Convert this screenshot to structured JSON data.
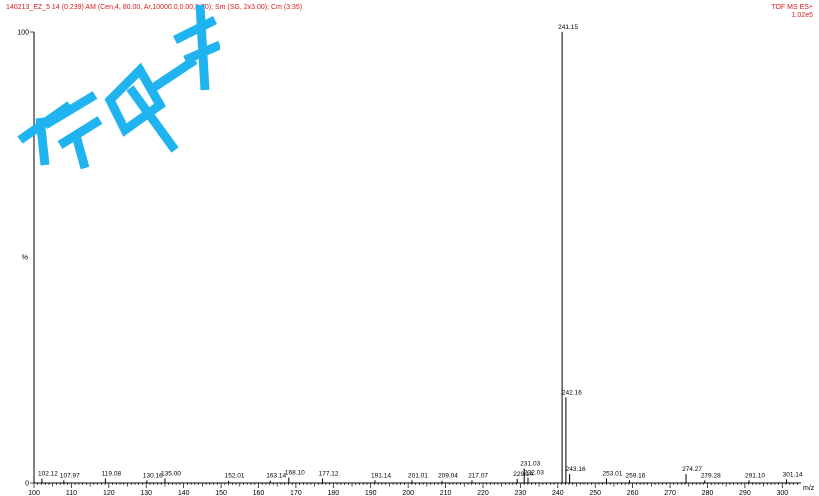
{
  "header": {
    "left": "140213_EZ_5 14 (0.239) AM (Cen,4, 80.00, Ar,10000.0,0.00,0.70); Sm (SG, 2x3.00); Cm (3:35)",
    "right_line1": "TOF MS ES+",
    "right_line2": "1.02e5"
  },
  "chart_data": {
    "type": "bar",
    "title": "",
    "xlabel": "m/z",
    "ylabel": "%",
    "xlim": [
      100,
      305
    ],
    "ylim": [
      0,
      100
    ],
    "x_ticks": [
      100,
      110,
      120,
      130,
      140,
      150,
      160,
      170,
      180,
      190,
      200,
      210,
      220,
      230,
      240,
      250,
      260,
      270,
      280,
      290,
      300
    ],
    "y_ticks": [
      0,
      100
    ],
    "peaks": [
      {
        "mz": 102.12,
        "label": "102.12",
        "intensity": 1.0
      },
      {
        "mz": 107.97,
        "label": "107.97",
        "intensity": 0.6
      },
      {
        "mz": 119.08,
        "label": "119.08",
        "intensity": 1.0
      },
      {
        "mz": 130.16,
        "label": "130.16",
        "intensity": 0.6
      },
      {
        "mz": 135.0,
        "label": "135.00",
        "intensity": 1.0
      },
      {
        "mz": 152.01,
        "label": "152.01",
        "intensity": 0.5
      },
      {
        "mz": 163.14,
        "label": "163.14",
        "intensity": 0.5
      },
      {
        "mz": 168.1,
        "label": "168.10",
        "intensity": 1.2
      },
      {
        "mz": 177.12,
        "label": "177.12",
        "intensity": 1.0
      },
      {
        "mz": 191.14,
        "label": "191.14",
        "intensity": 0.6
      },
      {
        "mz": 201.01,
        "label": "201.01",
        "intensity": 0.6
      },
      {
        "mz": 209.04,
        "label": "209.04",
        "intensity": 0.5
      },
      {
        "mz": 217.07,
        "label": "217.07",
        "intensity": 0.6
      },
      {
        "mz": 229.14,
        "label": "229.14",
        "intensity": 0.9
      },
      {
        "mz": 231.03,
        "label": "231.03",
        "intensity": 3.2
      },
      {
        "mz": 232.03,
        "label": "232.03",
        "intensity": 1.2
      },
      {
        "mz": 241.15,
        "label": "241.15",
        "intensity": 100
      },
      {
        "mz": 242.16,
        "label": "242.16",
        "intensity": 19
      },
      {
        "mz": 243.16,
        "label": "243.16",
        "intensity": 2.0
      },
      {
        "mz": 253.01,
        "label": "253.01",
        "intensity": 1.0
      },
      {
        "mz": 259.16,
        "label": "259.16",
        "intensity": 0.6
      },
      {
        "mz": 274.27,
        "label": "274.27",
        "intensity": 2.0
      },
      {
        "mz": 279.28,
        "label": "279.28",
        "intensity": 0.6
      },
      {
        "mz": 291.1,
        "label": "291.10",
        "intensity": 0.6
      },
      {
        "mz": 301.14,
        "label": "301.14",
        "intensity": 0.8
      }
    ]
  },
  "colors": {
    "header_text": "#d81b1b",
    "axis": "#000000",
    "watermark": "#1fb4f0"
  }
}
